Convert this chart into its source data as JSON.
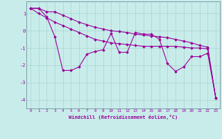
{
  "xlabel": "Windchill (Refroidissement éolien,°C)",
  "bg_color": "#c8ecea",
  "grid_color": "#a8d4d0",
  "line_color": "#990099",
  "x_data": [
    0,
    1,
    2,
    3,
    4,
    5,
    6,
    7,
    8,
    9,
    10,
    11,
    12,
    13,
    14,
    15,
    16,
    17,
    18,
    19,
    20,
    21,
    22,
    23
  ],
  "y_line1": [
    1.3,
    1.3,
    1.1,
    1.1,
    0.9,
    0.7,
    0.5,
    0.35,
    0.2,
    0.1,
    0.0,
    -0.05,
    -0.1,
    -0.2,
    -0.25,
    -0.3,
    -0.35,
    -0.4,
    -0.5,
    -0.6,
    -0.7,
    -0.85,
    -0.95,
    -3.9
  ],
  "y_line2": [
    1.3,
    1.0,
    0.75,
    0.5,
    0.3,
    0.1,
    -0.1,
    -0.3,
    -0.5,
    -0.6,
    -0.7,
    -0.75,
    -0.8,
    -0.85,
    -0.9,
    -0.9,
    -0.9,
    -0.9,
    -0.9,
    -0.95,
    -1.0,
    -1.0,
    -1.05,
    -3.9
  ],
  "y_zigzag": [
    1.3,
    1.3,
    0.8,
    -0.35,
    -2.3,
    -2.3,
    -2.1,
    -1.35,
    -1.2,
    -1.1,
    -0.15,
    -1.25,
    -1.25,
    -0.1,
    -0.2,
    -0.2,
    -0.5,
    -1.9,
    -2.35,
    -2.1,
    -1.5,
    -1.5,
    -1.3,
    -3.9
  ],
  "ylim": [
    -4.5,
    1.7
  ],
  "xlim": [
    -0.5,
    23.5
  ],
  "yticks": [
    1,
    0,
    -1,
    -2,
    -3,
    -4
  ],
  "xticks": [
    0,
    1,
    2,
    3,
    4,
    5,
    6,
    7,
    8,
    9,
    10,
    11,
    12,
    13,
    14,
    15,
    16,
    17,
    18,
    19,
    20,
    21,
    22,
    23
  ]
}
